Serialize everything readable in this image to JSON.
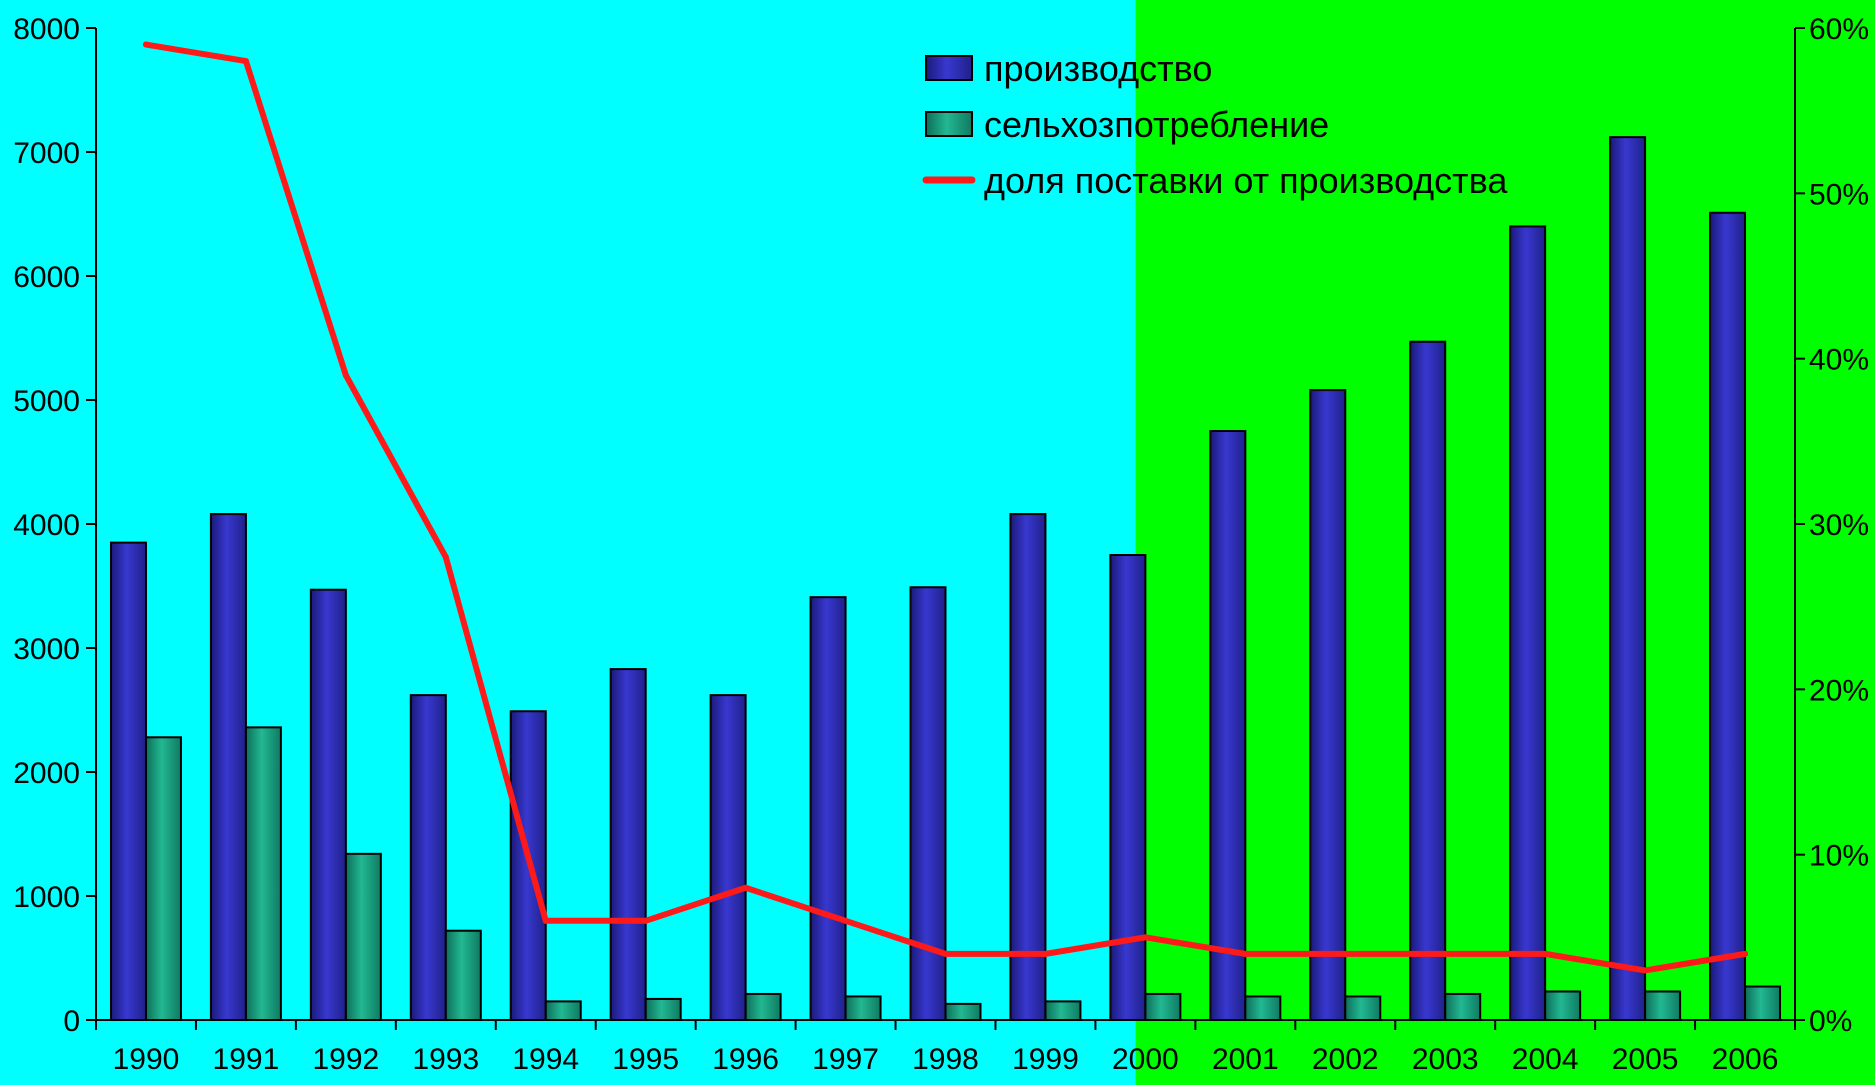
{
  "chart_data": {
    "type": "bar",
    "categories": [
      "1990",
      "1991",
      "1992",
      "1993",
      "1994",
      "1995",
      "1996",
      "1997",
      "1998",
      "1999",
      "2000",
      "2001",
      "2002",
      "2003",
      "2004",
      "2005",
      "2006"
    ],
    "series": [
      {
        "name": "производство",
        "kind": "bar",
        "axis": "left",
        "color": "#2E2EB8",
        "values": [
          3850,
          4080,
          3470,
          2620,
          2490,
          2830,
          2620,
          3410,
          3490,
          4080,
          3750,
          4750,
          5080,
          5470,
          6400,
          7120,
          6510
        ]
      },
      {
        "name": "сельхозпотребление",
        "kind": "bar",
        "axis": "left",
        "color": "#1A9E80",
        "values": [
          2280,
          2360,
          1340,
          720,
          150,
          170,
          210,
          190,
          130,
          150,
          210,
          190,
          190,
          210,
          230,
          230,
          270
        ]
      },
      {
        "name": "доля поставки от производства",
        "kind": "line",
        "axis": "right",
        "color": "#FF1A1A",
        "values": [
          59,
          58,
          39,
          28,
          6,
          6,
          8,
          6,
          4,
          4,
          5,
          4,
          4,
          4,
          4,
          3,
          4
        ]
      }
    ],
    "y_left": {
      "ylim": [
        0,
        8000
      ],
      "ticks": [
        "0",
        "1000",
        "2000",
        "3000",
        "4000",
        "5000",
        "6000",
        "7000",
        "8000"
      ]
    },
    "y_right": {
      "ylim": [
        0,
        60
      ],
      "ticks": [
        "0%",
        "10%",
        "20%",
        "30%",
        "40%",
        "50%",
        "60%"
      ]
    },
    "background_regions": [
      {
        "from_category": "1990",
        "to_category": "1999",
        "color": "#00FFFF"
      },
      {
        "from_category": "2000",
        "to_category": "2006",
        "color": "#00FF00"
      }
    ],
    "legend": {
      "position": "top-center",
      "entries": [
        "производство",
        "сельхозпотребление",
        "доля поставки от производства"
      ]
    },
    "grid": false,
    "title": "",
    "xlabel": "",
    "ylabel": ""
  }
}
